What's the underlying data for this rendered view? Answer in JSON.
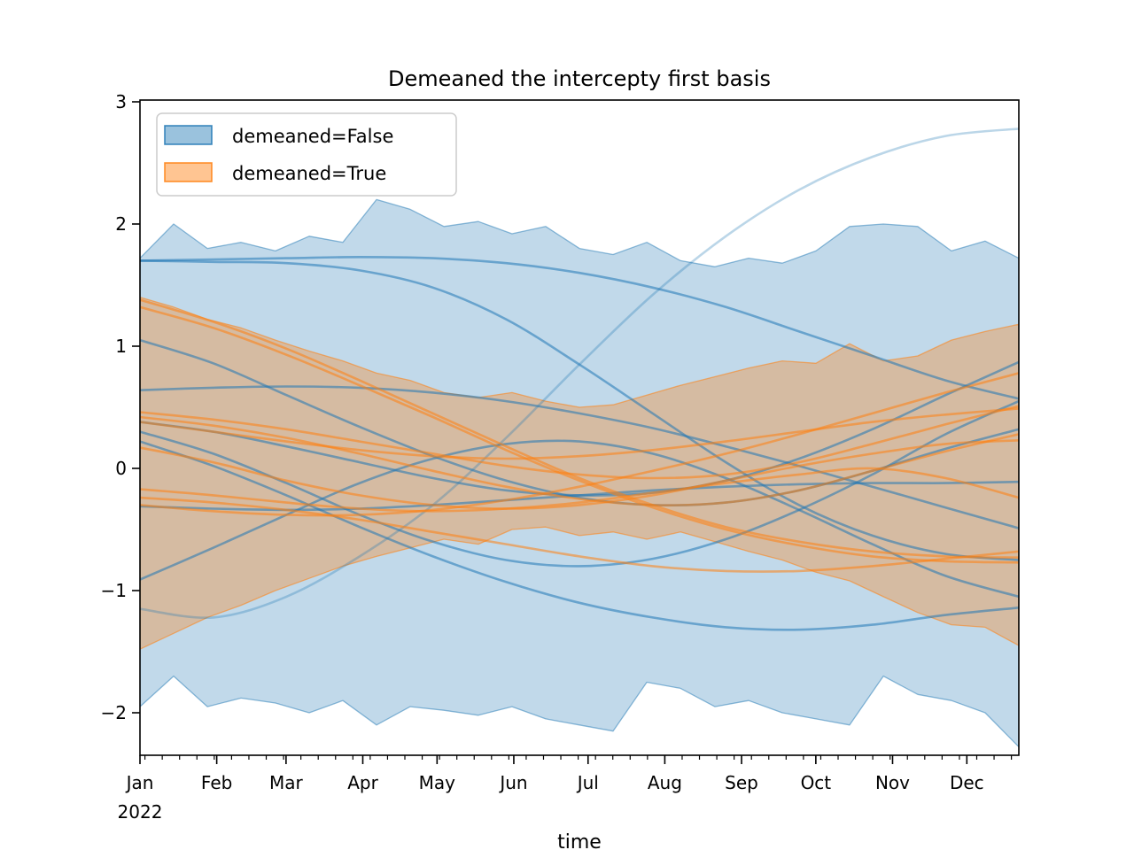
{
  "chart_data": {
    "type": "line",
    "title": "Demeaned the intercepty first basis",
    "xlabel": "time",
    "year_label": "2022",
    "x_tick_labels": [
      "Jan",
      "Feb",
      "Mar",
      "Apr",
      "May",
      "Jun",
      "Jul",
      "Aug",
      "Sep",
      "Oct",
      "Nov",
      "Dec"
    ],
    "x_tick_days": [
      0,
      31,
      59,
      90,
      120,
      151,
      181,
      212,
      243,
      273,
      304,
      334
    ],
    "x_minor_tick_first_day": 2,
    "x_minor_tick_step_days": 7,
    "x_axis_span_days": 355,
    "y_tick_values": [
      3,
      2,
      1,
      0,
      -1,
      -2
    ],
    "y_tick_labels": [
      "3",
      "2",
      "1",
      "0",
      "−1",
      "−2"
    ],
    "ylim": [
      -2.35,
      3.01
    ],
    "grid": false,
    "legend_position": "upper-left",
    "colors": {
      "demeaned_false": "#1f77b4",
      "demeaned_true": "#ff7f0e"
    },
    "legend": {
      "entries": [
        {
          "label": "demeaned=False",
          "color": "#1f77b4"
        },
        {
          "label": "demeaned=True",
          "color": "#ff7f0e"
        }
      ]
    },
    "band_x_months": [
      0,
      0.46,
      0.92,
      1.38,
      1.85,
      2.31,
      2.77,
      3.23,
      3.69,
      4.15,
      4.62,
      5.08,
      5.54,
      6,
      6.46,
      6.92,
      7.38,
      7.85,
      8.31,
      8.77,
      9.23,
      9.69,
      10.15,
      10.62,
      11.08,
      11.54,
      12
    ],
    "bands": [
      {
        "name": "envelope-demeaned-false",
        "color": "#1f77b4",
        "fill_alpha": 0.28,
        "edge_alpha": 0.5,
        "upper": [
          1.72,
          2.0,
          1.8,
          1.85,
          1.78,
          1.9,
          1.85,
          2.2,
          2.12,
          1.98,
          2.02,
          1.92,
          1.98,
          1.8,
          1.75,
          1.85,
          1.7,
          1.65,
          1.72,
          1.68,
          1.78,
          1.98,
          2.0,
          1.98,
          1.78,
          1.86,
          1.72
        ],
        "lower": [
          -1.95,
          -1.7,
          -1.95,
          -1.88,
          -1.92,
          -2.0,
          -1.9,
          -2.1,
          -1.95,
          -1.98,
          -2.02,
          -1.95,
          -2.05,
          -2.1,
          -2.15,
          -1.75,
          -1.8,
          -1.95,
          -1.9,
          -2.0,
          -2.05,
          -2.1,
          -1.7,
          -1.85,
          -1.9,
          -2.0,
          -2.28
        ]
      },
      {
        "name": "envelope-demeaned-true",
        "color": "#ff7f0e",
        "fill_alpha": 0.33,
        "edge_alpha": 0.55,
        "upper": [
          1.4,
          1.32,
          1.22,
          1.15,
          1.05,
          0.96,
          0.88,
          0.78,
          0.72,
          0.62,
          0.58,
          0.62,
          0.55,
          0.5,
          0.52,
          0.6,
          0.68,
          0.75,
          0.82,
          0.88,
          0.86,
          1.02,
          0.88,
          0.92,
          1.05,
          1.12,
          1.18
        ],
        "lower": [
          -1.48,
          -1.35,
          -1.22,
          -1.12,
          -1.0,
          -0.9,
          -0.8,
          -0.72,
          -0.65,
          -0.58,
          -0.62,
          -0.5,
          -0.48,
          -0.55,
          -0.52,
          -0.58,
          -0.52,
          -0.6,
          -0.68,
          -0.75,
          -0.85,
          -0.92,
          -1.05,
          -1.18,
          -1.28,
          -1.3,
          -1.45
        ]
      }
    ],
    "series_x_months": [
      0,
      1,
      2,
      3,
      4,
      5,
      6,
      7,
      8,
      9,
      10,
      11,
      12
    ],
    "series": [
      {
        "name": "false-1",
        "group": "demeaned=False",
        "color": "#1f77b4",
        "alpha": 0.3,
        "width": 2.6,
        "y": [
          -1.15,
          -1.22,
          -1.05,
          -0.72,
          -0.3,
          0.25,
          0.85,
          1.42,
          1.9,
          2.28,
          2.55,
          2.72,
          2.78
        ]
      },
      {
        "name": "false-2",
        "group": "demeaned=False",
        "color": "#1f77b4",
        "alpha": 0.55,
        "width": 2.6,
        "y": [
          1.7,
          1.71,
          1.72,
          1.73,
          1.72,
          1.68,
          1.6,
          1.48,
          1.32,
          1.12,
          0.92,
          0.72,
          0.57
        ]
      },
      {
        "name": "false-3",
        "group": "demeaned=False",
        "color": "#1f77b4",
        "alpha": 0.55,
        "width": 2.6,
        "y": [
          1.7,
          1.69,
          1.68,
          1.62,
          1.48,
          1.22,
          0.85,
          0.45,
          0.05,
          -0.3,
          -0.55,
          -0.7,
          -0.75
        ]
      },
      {
        "name": "false-4",
        "group": "demeaned=False",
        "color": "#1f77b4",
        "alpha": 0.55,
        "width": 2.6,
        "y": [
          1.05,
          0.86,
          0.6,
          0.34,
          0.1,
          -0.1,
          -0.24,
          -0.3,
          -0.28,
          -0.18,
          -0.02,
          0.16,
          0.32
        ]
      },
      {
        "name": "false-5",
        "group": "demeaned=False",
        "color": "#1f77b4",
        "alpha": 0.55,
        "width": 2.6,
        "y": [
          0.64,
          0.66,
          0.67,
          0.66,
          0.62,
          0.55,
          0.45,
          0.33,
          0.18,
          0.02,
          -0.15,
          -0.32,
          -0.49
        ]
      },
      {
        "name": "false-6",
        "group": "demeaned=False",
        "color": "#1f77b4",
        "alpha": 0.55,
        "width": 2.6,
        "y": [
          0.38,
          0.3,
          0.18,
          0.05,
          -0.08,
          -0.18,
          -0.22,
          -0.2,
          -0.1,
          0.08,
          0.32,
          0.6,
          0.87
        ]
      },
      {
        "name": "false-7",
        "group": "demeaned=False",
        "color": "#1f77b4",
        "alpha": 0.55,
        "width": 2.6,
        "y": [
          0.3,
          0.12,
          -0.12,
          -0.38,
          -0.6,
          -0.75,
          -0.8,
          -0.74,
          -0.58,
          -0.34,
          -0.05,
          0.28,
          0.55
        ]
      },
      {
        "name": "false-8",
        "group": "demeaned=False",
        "color": "#1f77b4",
        "alpha": 0.55,
        "width": 2.6,
        "y": [
          0.22,
          0.02,
          -0.22,
          -0.48,
          -0.72,
          -0.93,
          -1.1,
          -1.22,
          -1.3,
          -1.32,
          -1.28,
          -1.2,
          -1.14
        ]
      },
      {
        "name": "false-9",
        "group": "demeaned=False",
        "color": "#1f77b4",
        "alpha": 0.55,
        "width": 2.6,
        "y": [
          -0.31,
          -0.33,
          -0.34,
          -0.33,
          -0.3,
          -0.26,
          -0.22,
          -0.18,
          -0.15,
          -0.13,
          -0.12,
          -0.12,
          -0.11
        ]
      },
      {
        "name": "false-10",
        "group": "demeaned=False",
        "color": "#1f77b4",
        "alpha": 0.55,
        "width": 2.6,
        "y": [
          -0.91,
          -0.65,
          -0.38,
          -0.12,
          0.08,
          0.2,
          0.22,
          0.12,
          -0.08,
          -0.34,
          -0.62,
          -0.88,
          -1.05
        ]
      },
      {
        "name": "true-1",
        "group": "demeaned=True",
        "color": "#ff7f0e",
        "alpha": 0.55,
        "width": 2.6,
        "y": [
          1.38,
          1.2,
          0.98,
          0.72,
          0.45,
          0.18,
          -0.08,
          -0.3,
          -0.48,
          -0.6,
          -0.68,
          -0.72,
          -0.73
        ]
      },
      {
        "name": "true-2",
        "group": "demeaned=True",
        "color": "#ff7f0e",
        "alpha": 0.55,
        "width": 2.6,
        "y": [
          1.32,
          1.15,
          0.93,
          0.68,
          0.42,
          0.15,
          -0.1,
          -0.32,
          -0.5,
          -0.63,
          -0.72,
          -0.76,
          -0.77
        ]
      },
      {
        "name": "true-3",
        "group": "demeaned=True",
        "color": "#ff7f0e",
        "alpha": 0.55,
        "width": 2.6,
        "y": [
          0.46,
          0.4,
          0.32,
          0.22,
          0.12,
          0.02,
          -0.05,
          -0.08,
          -0.05,
          0.05,
          0.2,
          0.36,
          0.51
        ]
      },
      {
        "name": "true-4",
        "group": "demeaned=True",
        "color": "#ff7f0e",
        "alpha": 0.55,
        "width": 2.6,
        "y": [
          0.42,
          0.35,
          0.25,
          0.12,
          -0.02,
          -0.15,
          -0.25,
          -0.3,
          -0.28,
          -0.18,
          -0.02,
          0.14,
          0.28
        ]
      },
      {
        "name": "true-5",
        "group": "demeaned=True",
        "color": "#ff7f0e",
        "alpha": 0.55,
        "width": 2.6,
        "y": [
          0.38,
          0.3,
          0.22,
          0.15,
          0.1,
          0.08,
          0.1,
          0.15,
          0.22,
          0.3,
          0.38,
          0.44,
          0.49
        ]
      },
      {
        "name": "true-6",
        "group": "demeaned=True",
        "color": "#ff7f0e",
        "alpha": 0.55,
        "width": 2.6,
        "y": [
          0.17,
          0.05,
          -0.1,
          -0.22,
          -0.3,
          -0.33,
          -0.3,
          -0.22,
          -0.1,
          0.02,
          0.12,
          0.2,
          0.23
        ]
      },
      {
        "name": "true-7",
        "group": "demeaned=True",
        "color": "#ff7f0e",
        "alpha": 0.55,
        "width": 2.6,
        "y": [
          -0.17,
          -0.22,
          -0.28,
          -0.33,
          -0.35,
          -0.33,
          -0.28,
          -0.2,
          -0.12,
          -0.05,
          0.0,
          -0.08,
          -0.24
        ]
      },
      {
        "name": "true-8",
        "group": "demeaned=True",
        "color": "#ff7f0e",
        "alpha": 0.55,
        "width": 2.6,
        "y": [
          -0.24,
          -0.28,
          -0.34,
          -0.42,
          -0.52,
          -0.62,
          -0.72,
          -0.8,
          -0.84,
          -0.84,
          -0.8,
          -0.74,
          -0.68
        ]
      },
      {
        "name": "true-9",
        "group": "demeaned=True",
        "color": "#ff7f0e",
        "alpha": 0.55,
        "width": 2.6,
        "y": [
          -0.3,
          -0.35,
          -0.38,
          -0.38,
          -0.34,
          -0.26,
          -0.15,
          -0.02,
          0.12,
          0.28,
          0.45,
          0.62,
          0.78
        ]
      }
    ]
  }
}
